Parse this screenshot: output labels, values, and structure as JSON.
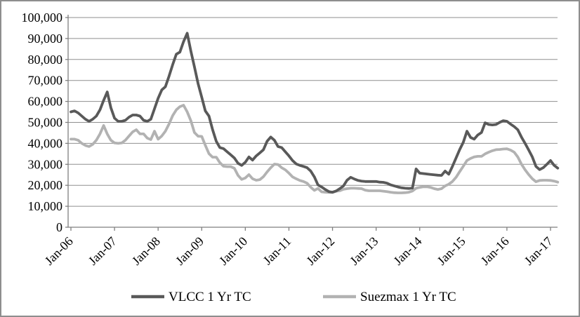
{
  "chart_data": {
    "type": "line",
    "title": "",
    "xlabel": "",
    "ylabel": "",
    "ylim": [
      0,
      100000
    ],
    "y_ticks": [
      0,
      10000,
      20000,
      30000,
      40000,
      50000,
      60000,
      70000,
      80000,
      90000,
      100000
    ],
    "y_tick_labels": [
      "0",
      "10,000",
      "20,000",
      "30,000",
      "40,000",
      "50,000",
      "60,000",
      "70,000",
      "80,000",
      "90,000",
      "100,000"
    ],
    "x_tick_labels": [
      "Jan-06",
      "Jan-07",
      "Jan-08",
      "Jan-09",
      "Jan-10",
      "Jan-11",
      "Jan-12",
      "Jan-13",
      "Jan-14",
      "Jan-15",
      "Jan-16",
      "Jan-17"
    ],
    "x_months_per_tick": 12,
    "x_start": "Jan-2006",
    "x_end": "Mar-2017",
    "grid": "horizontal",
    "legend_position": "bottom",
    "axis_color": "#7f7f7f",
    "grid_color": "#8f8f8f",
    "series": [
      {
        "name": "VLCC 1 Yr TC",
        "color": "#595959",
        "values": [
          55000,
          55500,
          54500,
          53000,
          51500,
          50500,
          51500,
          53000,
          56000,
          60500,
          64500,
          57000,
          52000,
          50500,
          50500,
          51000,
          52500,
          53500,
          53500,
          53000,
          51000,
          50500,
          51500,
          56500,
          61500,
          65500,
          67000,
          72000,
          77500,
          82500,
          83500,
          88500,
          92500,
          84000,
          76500,
          68500,
          62000,
          55500,
          53000,
          46500,
          41000,
          38000,
          37500,
          36000,
          34500,
          33000,
          30500,
          29500,
          31000,
          33500,
          32000,
          34000,
          35500,
          37000,
          41000,
          43000,
          41500,
          38500,
          38000,
          36000,
          34000,
          31800,
          30200,
          29500,
          29000,
          28400,
          26800,
          24000,
          20200,
          19200,
          18000,
          17000,
          16700,
          17300,
          18400,
          19700,
          22400,
          23800,
          23000,
          22300,
          22000,
          21800,
          21800,
          21800,
          21800,
          21500,
          21400,
          21000,
          20200,
          19700,
          19200,
          18800,
          18600,
          18500,
          18700,
          27800,
          25800,
          25600,
          25400,
          25200,
          25000,
          24800,
          24700,
          26800,
          25300,
          29000,
          33000,
          37000,
          40500,
          45800,
          42800,
          42000,
          44000,
          45200,
          49800,
          49000,
          48800,
          49000,
          50000,
          50800,
          50500,
          49200,
          48000,
          46500,
          43000,
          40000,
          36800,
          33500,
          29000,
          27500,
          28400,
          30000,
          31800,
          29500,
          28200
        ]
      },
      {
        "name": "Suezmax 1 Yr TC",
        "color": "#b2b2b2",
        "values": [
          42000,
          42000,
          41500,
          40000,
          39000,
          38500,
          39500,
          41500,
          44500,
          48500,
          44500,
          41500,
          40200,
          40000,
          40200,
          41500,
          43500,
          45500,
          46500,
          44500,
          44500,
          42500,
          41800,
          45800,
          42000,
          43500,
          45800,
          49200,
          53200,
          56000,
          57500,
          58200,
          55000,
          50800,
          45200,
          43400,
          43300,
          39100,
          35100,
          33400,
          33400,
          30800,
          29100,
          28900,
          28900,
          28100,
          24700,
          22800,
          23500,
          25100,
          23100,
          22400,
          22700,
          24100,
          26400,
          28400,
          30100,
          29900,
          28400,
          27400,
          25800,
          24000,
          23100,
          22300,
          21800,
          21000,
          19100,
          17600,
          18500,
          16900,
          16700,
          16600,
          16600,
          17200,
          17400,
          18100,
          18400,
          18600,
          18600,
          18500,
          18400,
          17700,
          17400,
          17400,
          17400,
          17400,
          17200,
          17000,
          16700,
          16500,
          16400,
          16400,
          16500,
          16700,
          17300,
          18600,
          19000,
          19300,
          19300,
          19000,
          18400,
          18000,
          18400,
          19700,
          20500,
          21800,
          23800,
          26500,
          29100,
          31800,
          32800,
          33500,
          33800,
          33800,
          35000,
          35800,
          36500,
          37000,
          37100,
          37300,
          37400,
          36800,
          35800,
          33500,
          30100,
          27400,
          25100,
          23100,
          21700,
          22300,
          22400,
          22400,
          22300,
          22000,
          21500
        ]
      }
    ]
  },
  "legend": {
    "vlcc_label": "VLCC 1 Yr TC",
    "suezmax_label": "Suezmax 1 Yr TC"
  }
}
